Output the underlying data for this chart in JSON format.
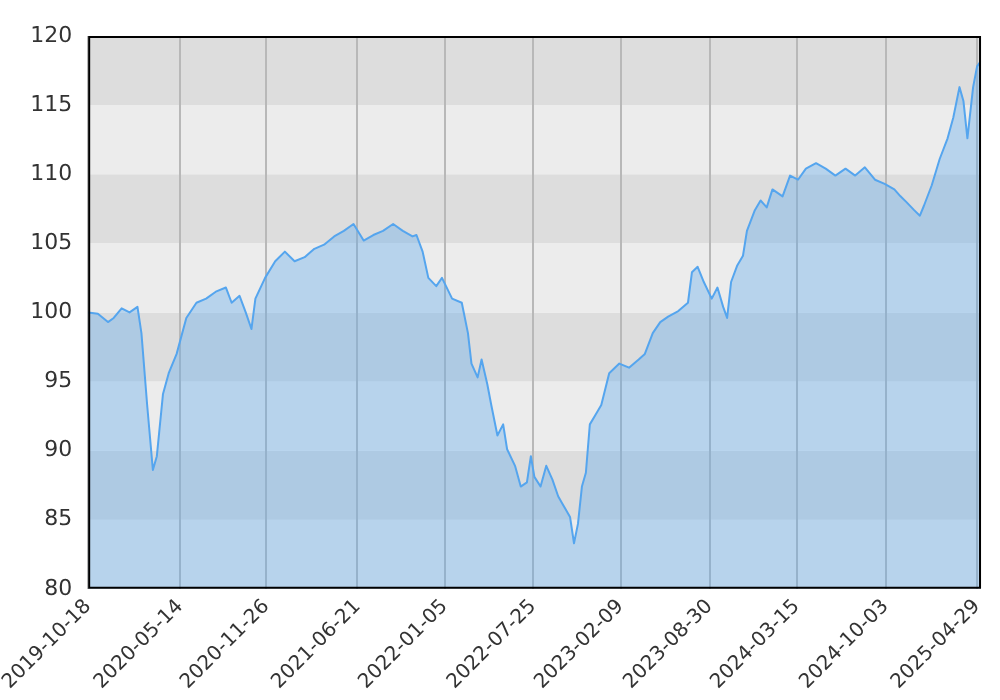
{
  "chart_data": {
    "type": "area",
    "x": [
      "2019-10-18",
      "2019-11-09",
      "2019-12-02",
      "2019-12-15",
      "2020-01-02",
      "2020-01-20",
      "2020-02-07",
      "2020-02-16",
      "2020-02-29",
      "2020-03-13",
      "2020-03-22",
      "2020-04-05",
      "2020-04-18",
      "2020-05-06",
      "2020-05-28",
      "2020-06-20",
      "2020-07-12",
      "2020-08-03",
      "2020-08-26",
      "2020-09-08",
      "2020-09-26",
      "2020-10-10",
      "2020-10-23",
      "2020-11-01",
      "2020-11-23",
      "2020-12-16",
      "2021-01-07",
      "2021-01-29",
      "2021-02-21",
      "2021-03-15",
      "2021-04-06",
      "2021-04-29",
      "2021-05-21",
      "2021-06-12",
      "2021-07-05",
      "2021-07-27",
      "2021-08-18",
      "2021-09-10",
      "2021-10-02",
      "2021-10-24",
      "2021-11-02",
      "2021-11-16",
      "2021-11-29",
      "2021-12-17",
      "2021-12-30",
      "2022-01-22",
      "2022-02-13",
      "2022-02-27",
      "2022-03-07",
      "2022-03-21",
      "2022-03-30",
      "2022-04-12",
      "2022-04-21",
      "2022-05-05",
      "2022-05-18",
      "2022-05-27",
      "2022-06-14",
      "2022-06-27",
      "2022-07-11",
      "2022-07-20",
      "2022-07-28",
      "2022-08-11",
      "2022-08-24",
      "2022-09-07",
      "2022-09-20",
      "2022-09-29",
      "2022-10-17",
      "2022-10-26",
      "2022-11-04",
      "2022-11-13",
      "2022-11-22",
      "2022-12-01",
      "2022-12-14",
      "2022-12-27",
      "2023-01-14",
      "2023-02-06",
      "2023-02-28",
      "2023-03-22",
      "2023-04-05",
      "2023-04-23",
      "2023-05-10",
      "2023-05-28",
      "2023-06-20",
      "2023-07-12",
      "2023-07-21",
      "2023-08-03",
      "2023-08-17",
      "2023-09-04",
      "2023-09-17",
      "2023-09-30",
      "2023-10-09",
      "2023-10-18",
      "2023-11-01",
      "2023-11-14",
      "2023-11-23",
      "2023-12-11",
      "2023-12-24",
      "2024-01-07",
      "2024-01-20",
      "2024-02-12",
      "2024-02-29",
      "2024-03-18",
      "2024-04-05",
      "2024-04-28",
      "2024-05-20",
      "2024-06-11",
      "2024-07-04",
      "2024-07-26",
      "2024-08-17",
      "2024-09-09",
      "2024-10-01",
      "2024-10-23",
      "2024-11-06",
      "2024-11-19",
      "2024-12-07",
      "2024-12-20",
      "2024-12-29",
      "2025-01-16",
      "2025-02-03",
      "2025-02-21",
      "2025-03-06",
      "2025-03-20",
      "2025-03-29",
      "2025-04-07",
      "2025-04-20",
      "2025-04-29",
      "2025-05-08"
    ],
    "series": [
      {
        "color": "#55a5ee",
        "values": [
          100.0,
          99.9,
          99.3,
          99.6,
          100.3,
          100.0,
          100.4,
          98.5,
          93.3,
          88.6,
          89.6,
          94.1,
          95.6,
          97.0,
          99.6,
          100.7,
          101.0,
          101.5,
          101.8,
          100.7,
          101.2,
          100.0,
          98.8,
          101.0,
          102.5,
          103.7,
          104.4,
          103.7,
          104.0,
          104.6,
          104.9,
          105.5,
          105.9,
          106.4,
          105.2,
          105.6,
          105.9,
          106.4,
          105.9,
          105.5,
          105.6,
          104.4,
          102.5,
          101.9,
          102.5,
          101.0,
          100.7,
          98.5,
          96.3,
          95.3,
          96.6,
          94.8,
          93.3,
          91.1,
          91.9,
          90.1,
          88.9,
          87.4,
          87.7,
          89.6,
          88.1,
          87.4,
          88.9,
          87.9,
          86.7,
          86.2,
          85.2,
          83.3,
          84.7,
          87.4,
          88.4,
          91.9,
          92.6,
          93.3,
          95.6,
          96.3,
          96.0,
          96.6,
          97.0,
          98.5,
          99.3,
          99.7,
          100.1,
          100.7,
          102.9,
          103.3,
          102.2,
          101.0,
          101.8,
          100.4,
          99.6,
          102.2,
          103.4,
          104.1,
          105.9,
          107.4,
          108.1,
          107.6,
          108.9,
          108.4,
          109.9,
          109.6,
          110.4,
          110.8,
          110.4,
          109.9,
          110.4,
          109.9,
          110.5,
          109.6,
          109.3,
          108.9,
          108.4,
          108.0,
          107.4,
          107.0,
          107.7,
          109.2,
          111.1,
          112.6,
          114.1,
          116.3,
          115.3,
          112.6,
          116.3,
          117.8,
          118.2
        ]
      }
    ],
    "xlim": [
      "2019-10-18",
      "2025-05-08"
    ],
    "xticks": [
      "2019-10-18",
      "2020-05-14",
      "2020-11-26",
      "2021-06-21",
      "2022-01-05",
      "2022-07-25",
      "2023-02-09",
      "2023-08-30",
      "2024-03-15",
      "2024-10-03",
      "2025-04-29"
    ],
    "ylim": [
      80,
      120
    ],
    "yticks": [
      80,
      85,
      90,
      95,
      100,
      105,
      110,
      115,
      120
    ],
    "grid": "x",
    "legend": false,
    "marker": "none",
    "line_style": "solid"
  }
}
